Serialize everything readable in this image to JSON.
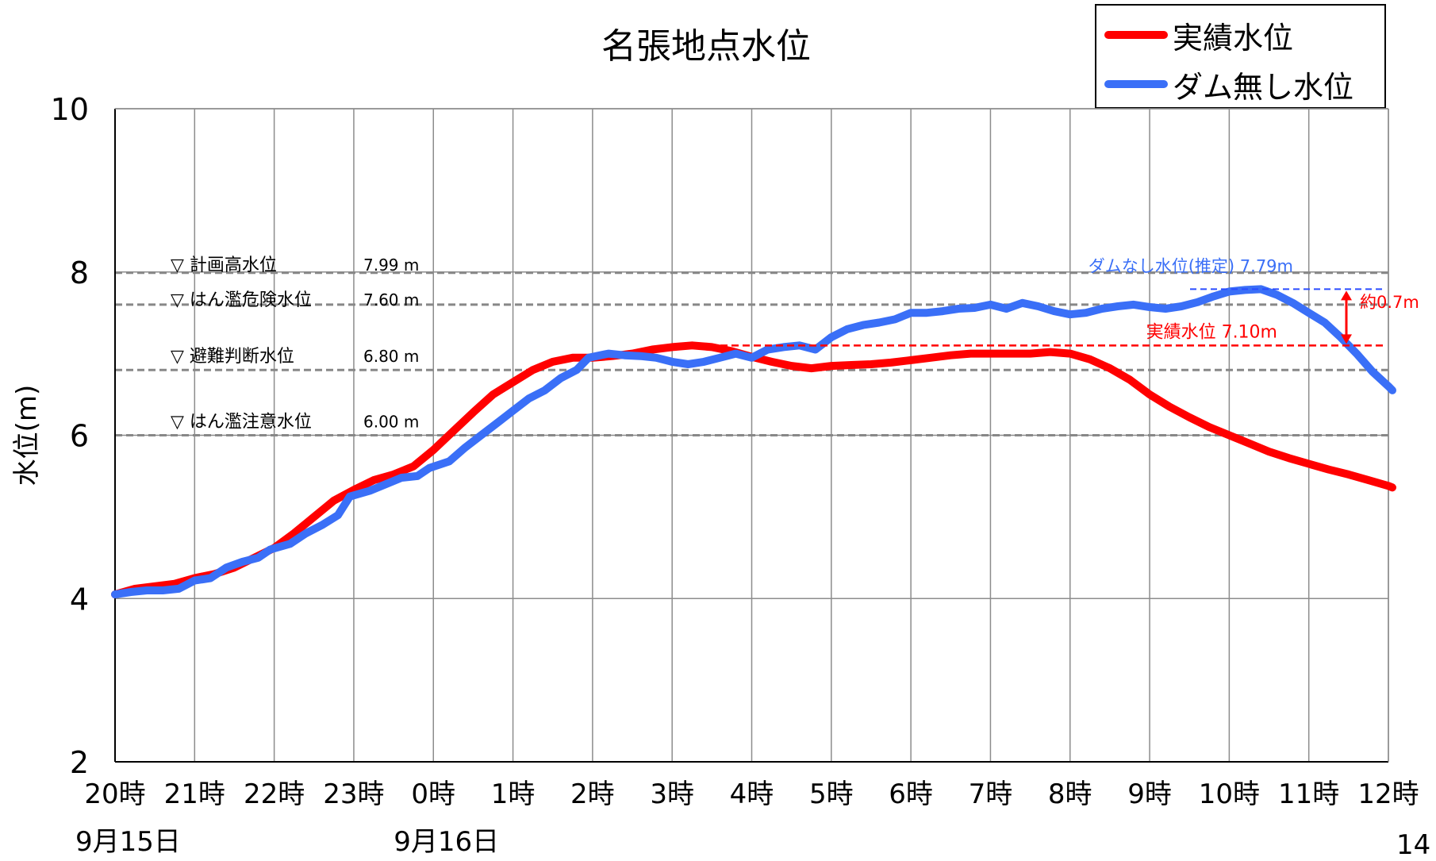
{
  "chart_data": {
    "type": "line",
    "title": "名張地点水位",
    "ylabel": "水位(m)",
    "xlabel": "",
    "ylim": [
      2,
      10
    ],
    "yticks": [
      2,
      4,
      6,
      8,
      10
    ],
    "grid": true,
    "legend_position": "top-right",
    "x_ticks": [
      "20時",
      "21時",
      "22時",
      "23時",
      "0時",
      "1時",
      "2時",
      "3時",
      "4時",
      "5時",
      "6時",
      "7時",
      "8時",
      "9時",
      "10時",
      "11時",
      "12時"
    ],
    "date_labels": [
      {
        "at": "20時",
        "text": "9月15日"
      },
      {
        "at": "0時",
        "text": "9月16日"
      }
    ],
    "reference_lines": [
      {
        "name": "▽ 計画高水位",
        "value": 7.99,
        "label": "7.99 m"
      },
      {
        "name": "▽ はん濫危険水位",
        "value": 7.6,
        "label": "7.60 m"
      },
      {
        "name": "▽ 避難判断水位",
        "value": 6.8,
        "label": "6.80 m"
      },
      {
        "name": "▽ はん濫注意水位",
        "value": 6.0,
        "label": "6.00 m"
      }
    ],
    "annotations": {
      "dam_none_peak": {
        "text": "ダムなし水位(推定) 7.79m",
        "value": 7.79
      },
      "actual_peak": {
        "text": "実績水位 7.10m",
        "value": 7.1
      },
      "difference": {
        "text": "約0.7m"
      }
    },
    "series": [
      {
        "name": "実績水位",
        "color": "#ff0000",
        "points": [
          [
            0,
            4.05
          ],
          [
            0.25,
            4.12
          ],
          [
            0.5,
            4.15
          ],
          [
            0.75,
            4.18
          ],
          [
            1,
            4.25
          ],
          [
            1.25,
            4.3
          ],
          [
            1.5,
            4.38
          ],
          [
            1.75,
            4.5
          ],
          [
            2,
            4.62
          ],
          [
            2.25,
            4.8
          ],
          [
            2.5,
            5.0
          ],
          [
            2.75,
            5.2
          ],
          [
            3,
            5.33
          ],
          [
            3.25,
            5.45
          ],
          [
            3.5,
            5.52
          ],
          [
            3.75,
            5.62
          ],
          [
            4,
            5.82
          ],
          [
            4.25,
            6.05
          ],
          [
            4.5,
            6.28
          ],
          [
            4.75,
            6.5
          ],
          [
            5,
            6.65
          ],
          [
            5.25,
            6.8
          ],
          [
            5.5,
            6.9
          ],
          [
            5.75,
            6.95
          ],
          [
            6,
            6.95
          ],
          [
            6.25,
            6.97
          ],
          [
            6.5,
            7.0
          ],
          [
            6.75,
            7.05
          ],
          [
            7,
            7.08
          ],
          [
            7.25,
            7.1
          ],
          [
            7.5,
            7.08
          ],
          [
            7.75,
            7.03
          ],
          [
            8,
            6.96
          ],
          [
            8.25,
            6.9
          ],
          [
            8.5,
            6.85
          ],
          [
            8.75,
            6.82
          ],
          [
            9,
            6.85
          ],
          [
            9.25,
            6.86
          ],
          [
            9.5,
            6.87
          ],
          [
            9.75,
            6.89
          ],
          [
            10,
            6.92
          ],
          [
            10.25,
            6.95
          ],
          [
            10.5,
            6.98
          ],
          [
            10.75,
            7.0
          ],
          [
            11,
            7.0
          ],
          [
            11.25,
            7.0
          ],
          [
            11.5,
            7.0
          ],
          [
            11.75,
            7.02
          ],
          [
            12,
            7.0
          ],
          [
            12.25,
            6.93
          ],
          [
            12.5,
            6.82
          ],
          [
            12.75,
            6.68
          ],
          [
            13,
            6.5
          ],
          [
            13.25,
            6.35
          ],
          [
            13.5,
            6.22
          ],
          [
            13.75,
            6.1
          ],
          [
            14,
            6.0
          ],
          [
            14.25,
            5.9
          ],
          [
            14.5,
            5.8
          ],
          [
            14.75,
            5.72
          ],
          [
            15,
            5.65
          ],
          [
            15.25,
            5.58
          ],
          [
            15.5,
            5.52
          ],
          [
            15.75,
            5.45
          ],
          [
            16,
            5.38
          ],
          [
            16.05,
            5.36
          ]
        ]
      },
      {
        "name": "ダム無し水位",
        "color": "#3a6ff7",
        "points": [
          [
            0,
            4.05
          ],
          [
            0.2,
            4.08
          ],
          [
            0.4,
            4.1
          ],
          [
            0.6,
            4.1
          ],
          [
            0.8,
            4.12
          ],
          [
            1,
            4.22
          ],
          [
            1.2,
            4.25
          ],
          [
            1.4,
            4.38
          ],
          [
            1.6,
            4.45
          ],
          [
            1.8,
            4.5
          ],
          [
            1.95,
            4.6
          ],
          [
            2.2,
            4.67
          ],
          [
            2.4,
            4.8
          ],
          [
            2.6,
            4.9
          ],
          [
            2.8,
            5.02
          ],
          [
            2.95,
            5.25
          ],
          [
            3.2,
            5.32
          ],
          [
            3.4,
            5.4
          ],
          [
            3.6,
            5.48
          ],
          [
            3.8,
            5.5
          ],
          [
            3.95,
            5.6
          ],
          [
            4.2,
            5.68
          ],
          [
            4.4,
            5.85
          ],
          [
            4.6,
            6.0
          ],
          [
            4.8,
            6.15
          ],
          [
            5.0,
            6.3
          ],
          [
            5.2,
            6.45
          ],
          [
            5.4,
            6.55
          ],
          [
            5.6,
            6.7
          ],
          [
            5.8,
            6.8
          ],
          [
            5.95,
            6.95
          ],
          [
            6.2,
            7.0
          ],
          [
            6.4,
            6.98
          ],
          [
            6.6,
            6.97
          ],
          [
            6.8,
            6.95
          ],
          [
            7.0,
            6.9
          ],
          [
            7.2,
            6.87
          ],
          [
            7.4,
            6.9
          ],
          [
            7.6,
            6.95
          ],
          [
            7.8,
            7.0
          ],
          [
            8.0,
            6.95
          ],
          [
            8.2,
            7.05
          ],
          [
            8.4,
            7.08
          ],
          [
            8.6,
            7.1
          ],
          [
            8.8,
            7.05
          ],
          [
            9.0,
            7.2
          ],
          [
            9.2,
            7.3
          ],
          [
            9.4,
            7.35
          ],
          [
            9.6,
            7.38
          ],
          [
            9.8,
            7.42
          ],
          [
            10.0,
            7.5
          ],
          [
            10.2,
            7.5
          ],
          [
            10.4,
            7.52
          ],
          [
            10.6,
            7.55
          ],
          [
            10.8,
            7.56
          ],
          [
            11.0,
            7.6
          ],
          [
            11.2,
            7.55
          ],
          [
            11.4,
            7.62
          ],
          [
            11.6,
            7.58
          ],
          [
            11.8,
            7.52
          ],
          [
            12.0,
            7.48
          ],
          [
            12.2,
            7.5
          ],
          [
            12.4,
            7.55
          ],
          [
            12.6,
            7.58
          ],
          [
            12.8,
            7.6
          ],
          [
            13.0,
            7.57
          ],
          [
            13.2,
            7.55
          ],
          [
            13.4,
            7.58
          ],
          [
            13.6,
            7.63
          ],
          [
            13.8,
            7.7
          ],
          [
            14.0,
            7.76
          ],
          [
            14.2,
            7.78
          ],
          [
            14.4,
            7.79
          ],
          [
            14.6,
            7.72
          ],
          [
            14.8,
            7.62
          ],
          [
            15.0,
            7.5
          ],
          [
            15.2,
            7.38
          ],
          [
            15.4,
            7.2
          ],
          [
            15.6,
            7.0
          ],
          [
            15.8,
            6.78
          ],
          [
            16.0,
            6.6
          ],
          [
            16.05,
            6.55
          ]
        ]
      }
    ]
  },
  "page_number": "14"
}
